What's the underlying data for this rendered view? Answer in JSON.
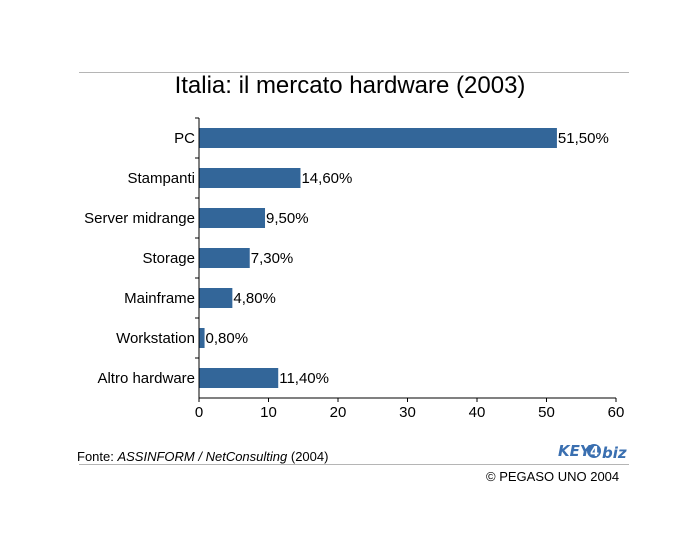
{
  "chart_data": {
    "type": "bar",
    "orientation": "horizontal",
    "title": "Italia: il mercato hardware (2003)",
    "categories": [
      "PC",
      "Stampanti",
      "Server midrange",
      "Storage",
      "Mainframe",
      "Workstation",
      "Altro hardware"
    ],
    "values": [
      51.5,
      14.6,
      9.5,
      7.3,
      4.8,
      0.8,
      11.4
    ],
    "data_labels": [
      "51,50%",
      "14,60%",
      "9,50%",
      "7,30%",
      "4,80%",
      "0,80%",
      "11,40%"
    ],
    "xlim": [
      0,
      60
    ],
    "xticks": [
      "0",
      "10",
      "20",
      "30",
      "40",
      "50",
      "60"
    ],
    "grid": false,
    "bar_color": "#336699"
  },
  "footer": {
    "source_prefix": "Fonte: ",
    "source_org": "ASSINFORM / NetConsulting",
    "source_year": " (2004)",
    "copyright": "© PEGASO UNO 2004",
    "logo_key": "KEY",
    "logo_four": "4",
    "logo_biz": "biz"
  },
  "colors": {
    "bar": "#336699",
    "logo": "#3a6fb0"
  }
}
